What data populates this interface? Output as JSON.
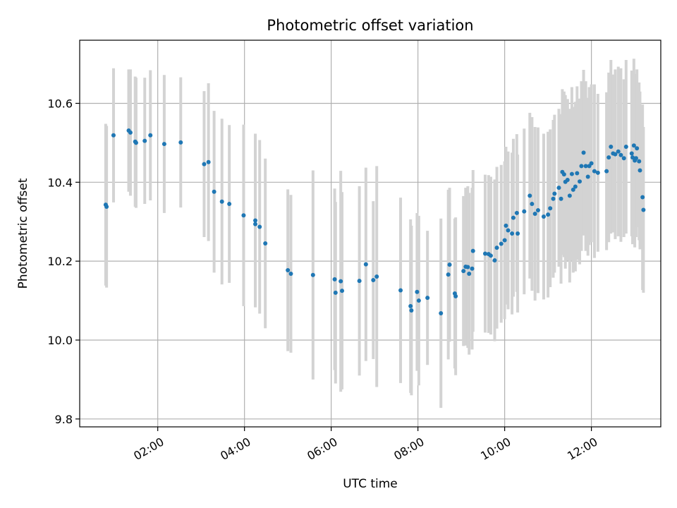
{
  "chart_data": {
    "type": "scatter",
    "title": "Photometric offset variation",
    "xlabel": "UTC time",
    "ylabel": "Photometric offset",
    "x_unit": "hours UTC",
    "xlim": [
      0.2,
      13.6
    ],
    "ylim": [
      9.78,
      10.76
    ],
    "xticks": [
      {
        "value": 2,
        "label": "02:00"
      },
      {
        "value": 4,
        "label": "04:00"
      },
      {
        "value": 6,
        "label": "06:00"
      },
      {
        "value": 8,
        "label": "08:00"
      },
      {
        "value": 10,
        "label": "10:00"
      },
      {
        "value": 12,
        "label": "12:00"
      }
    ],
    "yticks": [
      {
        "value": 9.8,
        "label": "9.8"
      },
      {
        "value": 10.0,
        "label": "10.0"
      },
      {
        "value": 10.2,
        "label": "10.2"
      },
      {
        "value": 10.4,
        "label": "10.4"
      },
      {
        "value": 10.6,
        "label": "10.6"
      }
    ],
    "grid": true,
    "colors": {
      "points": "#1f77b4",
      "errorbars": "#d3d3d3"
    },
    "points": [
      [
        0.8,
        10.343,
        0.205
      ],
      [
        0.82,
        10.338,
        0.205
      ],
      [
        0.98,
        10.519,
        0.17
      ],
      [
        1.33,
        10.531,
        0.155
      ],
      [
        1.37,
        10.526,
        0.16
      ],
      [
        1.48,
        10.503,
        0.165
      ],
      [
        1.5,
        10.5,
        0.165
      ],
      [
        1.7,
        10.505,
        0.16
      ],
      [
        1.83,
        10.519,
        0.165
      ],
      [
        2.15,
        10.497,
        0.175
      ],
      [
        2.53,
        10.501,
        0.165
      ],
      [
        3.07,
        10.446,
        0.185
      ],
      [
        3.17,
        10.451,
        0.2
      ],
      [
        3.3,
        10.376,
        0.205
      ],
      [
        3.48,
        10.351,
        0.21
      ],
      [
        3.65,
        10.345,
        0.2
      ],
      [
        3.98,
        10.316,
        0.23
      ],
      [
        4.25,
        10.303,
        0.22
      ],
      [
        4.25,
        10.294,
        0.21
      ],
      [
        4.35,
        10.287,
        0.22
      ],
      [
        4.48,
        10.245,
        0.215
      ],
      [
        5.0,
        10.177,
        0.205
      ],
      [
        5.07,
        10.168,
        0.2
      ],
      [
        5.58,
        10.165,
        0.265
      ],
      [
        6.08,
        10.154,
        0.23
      ],
      [
        6.1,
        10.12,
        0.23
      ],
      [
        6.22,
        10.149,
        0.28
      ],
      [
        6.25,
        10.125,
        0.25
      ],
      [
        6.65,
        10.15,
        0.24
      ],
      [
        6.8,
        10.192,
        0.245
      ],
      [
        6.97,
        10.152,
        0.2
      ],
      [
        7.05,
        10.161,
        0.28
      ],
      [
        7.6,
        10.126,
        0.235
      ],
      [
        7.83,
        10.086,
        0.22
      ],
      [
        7.85,
        10.075,
        0.215
      ],
      [
        7.98,
        10.122,
        0.2
      ],
      [
        8.02,
        10.1,
        0.215
      ],
      [
        8.22,
        10.107,
        0.17
      ],
      [
        8.53,
        10.068,
        0.24
      ],
      [
        8.7,
        10.166,
        0.215
      ],
      [
        8.73,
        10.191,
        0.195
      ],
      [
        8.85,
        10.118,
        0.19
      ],
      [
        8.87,
        10.111,
        0.2
      ],
      [
        9.05,
        10.175,
        0.19
      ],
      [
        9.1,
        10.186,
        0.2
      ],
      [
        9.15,
        10.185,
        0.205
      ],
      [
        9.18,
        10.168,
        0.205
      ],
      [
        9.25,
        10.181,
        0.205
      ],
      [
        9.27,
        10.226,
        0.205
      ],
      [
        9.55,
        10.219,
        0.2
      ],
      [
        9.63,
        10.218,
        0.2
      ],
      [
        9.68,
        10.214,
        0.2
      ],
      [
        9.77,
        10.202,
        0.205
      ],
      [
        9.82,
        10.234,
        0.205
      ],
      [
        9.92,
        10.244,
        0.2
      ],
      [
        10.0,
        10.253,
        0.2
      ],
      [
        10.03,
        10.29,
        0.2
      ],
      [
        10.08,
        10.278,
        0.2
      ],
      [
        10.17,
        10.27,
        0.205
      ],
      [
        10.2,
        10.31,
        0.2
      ],
      [
        10.28,
        10.322,
        0.2
      ],
      [
        10.3,
        10.27,
        0.2
      ],
      [
        10.45,
        10.326,
        0.21
      ],
      [
        10.58,
        10.366,
        0.21
      ],
      [
        10.63,
        10.345,
        0.22
      ],
      [
        10.7,
        10.32,
        0.22
      ],
      [
        10.77,
        10.329,
        0.21
      ],
      [
        10.9,
        10.313,
        0.21
      ],
      [
        11.0,
        10.318,
        0.21
      ],
      [
        11.05,
        10.334,
        0.2
      ],
      [
        11.12,
        10.358,
        0.2
      ],
      [
        11.15,
        10.371,
        0.2
      ],
      [
        11.25,
        10.386,
        0.2
      ],
      [
        11.3,
        10.358,
        0.215
      ],
      [
        11.33,
        10.426,
        0.21
      ],
      [
        11.37,
        10.42,
        0.21
      ],
      [
        11.4,
        10.401,
        0.22
      ],
      [
        11.45,
        10.406,
        0.205
      ],
      [
        11.5,
        10.366,
        0.22
      ],
      [
        11.55,
        10.421,
        0.22
      ],
      [
        11.58,
        10.381,
        0.21
      ],
      [
        11.63,
        10.389,
        0.215
      ],
      [
        11.67,
        10.423,
        0.22
      ],
      [
        11.73,
        10.402,
        0.21
      ],
      [
        11.77,
        10.441,
        0.215
      ],
      [
        11.82,
        10.475,
        0.21
      ],
      [
        11.87,
        10.441,
        0.215
      ],
      [
        11.92,
        10.414,
        0.2
      ],
      [
        11.95,
        10.441,
        0.2
      ],
      [
        12.0,
        10.448,
        0.2
      ],
      [
        12.07,
        10.428,
        0.22
      ],
      [
        12.15,
        10.424,
        0.2
      ],
      [
        12.35,
        10.428,
        0.2
      ],
      [
        12.4,
        10.463,
        0.215
      ],
      [
        12.45,
        10.49,
        0.22
      ],
      [
        12.5,
        10.473,
        0.2
      ],
      [
        12.55,
        10.471,
        0.215
      ],
      [
        12.62,
        10.478,
        0.215
      ],
      [
        12.68,
        10.469,
        0.22
      ],
      [
        12.75,
        10.461,
        0.2
      ],
      [
        12.8,
        10.49,
        0.22
      ],
      [
        12.93,
        10.473,
        0.21
      ],
      [
        12.95,
        10.463,
        0.22
      ],
      [
        12.98,
        10.493,
        0.22
      ],
      [
        13.0,
        10.455,
        0.22
      ],
      [
        13.03,
        10.461,
        0.2
      ],
      [
        13.05,
        10.486,
        0.2
      ],
      [
        13.1,
        10.453,
        0.2
      ],
      [
        13.12,
        10.43,
        0.2
      ],
      [
        13.18,
        10.362,
        0.235
      ],
      [
        13.2,
        10.33,
        0.21
      ]
    ]
  }
}
